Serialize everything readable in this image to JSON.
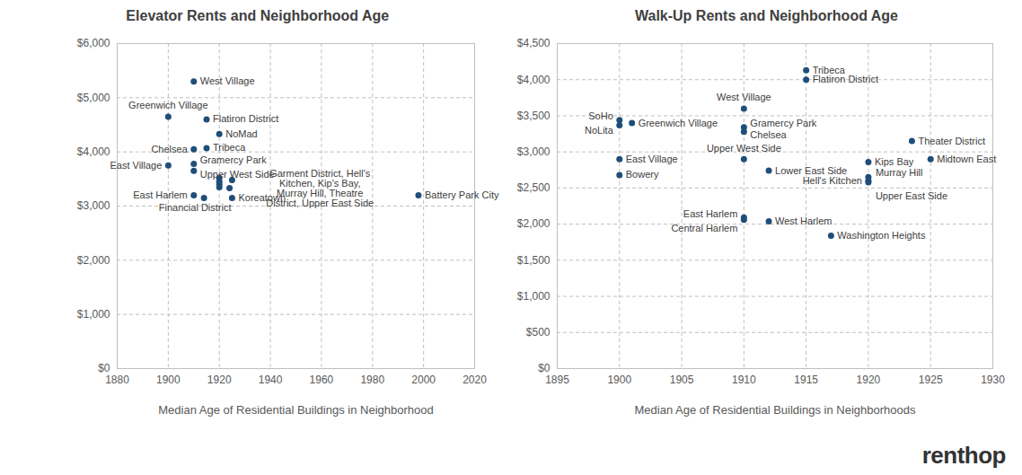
{
  "chart_data": [
    {
      "type": "scatter",
      "title": "Elevator Rents and Neighborhood Age",
      "x_label": "Median Age of Residential Buildings in Neighborhood",
      "xlim": [
        1880,
        2020
      ],
      "xticks": [
        1880,
        1900,
        1920,
        1940,
        1960,
        1980,
        2000,
        2020
      ],
      "ylim": [
        0,
        6000
      ],
      "yticks": [
        {
          "value": 0,
          "label": "$0"
        },
        {
          "value": 1000,
          "label": "$1,000"
        },
        {
          "value": 2000,
          "label": "$2,000"
        },
        {
          "value": 3000,
          "label": "$3,000"
        },
        {
          "value": 4000,
          "label": "$4,000"
        },
        {
          "value": 5000,
          "label": "$5,000"
        },
        {
          "value": 6000,
          "label": "$6,000"
        }
      ],
      "grid": true,
      "color": "#1f4e79",
      "marker": "circle",
      "labels": [
        "West Village",
        "Greenwich Village",
        "Flatiron District",
        "NoMad",
        "Chelsea",
        "Tribeca",
        "East Village",
        "Gramercy Park",
        "Upper West Side",
        null,
        null,
        null,
        null,
        null,
        null,
        "East Harlem",
        "Financial District",
        "Koreatown",
        "Battery Park City"
      ],
      "x": [
        1910,
        1900,
        1915,
        1920,
        1910,
        1915,
        1900,
        1910,
        1910,
        1920,
        1920,
        1920,
        1920,
        1925,
        1924,
        1910,
        1914,
        1925,
        1998
      ],
      "values": [
        5300,
        4650,
        4600,
        4330,
        4050,
        4070,
        3750,
        3780,
        3650,
        3520,
        3450,
        3400,
        3350,
        3480,
        3330,
        3200,
        3150,
        3150,
        3200
      ],
      "annotations": [
        {
          "text": "Garment District, Hell's Kitchen, Kip's Bay, Murray Hill, Theatre District, Upper East Side",
          "x": 1920,
          "y": 3450
        }
      ]
    },
    {
      "type": "scatter",
      "title": "Walk-Up Rents and Neighborhood Age",
      "x_label": "Median Age of Residential Buildings in Neighborhoods",
      "xlim": [
        1895,
        1930
      ],
      "xticks": [
        1895,
        1900,
        1905,
        1910,
        1915,
        1920,
        1925,
        1930
      ],
      "ylim": [
        0,
        4500
      ],
      "yticks": [
        {
          "value": 0,
          "label": "$0"
        },
        {
          "value": 500,
          "label": "$500"
        },
        {
          "value": 1000,
          "label": "$1,000"
        },
        {
          "value": 1500,
          "label": "$1,500"
        },
        {
          "value": 2000,
          "label": "$2,000"
        },
        {
          "value": 2500,
          "label": "$2,500"
        },
        {
          "value": 3000,
          "label": "$3,000"
        },
        {
          "value": 3500,
          "label": "$3,500"
        },
        {
          "value": 4000,
          "label": "$4,000"
        },
        {
          "value": 4500,
          "label": "$4,500"
        }
      ],
      "grid": true,
      "color": "#1f4e79",
      "marker": "circle",
      "labels": [
        "Tribeca",
        "Flatiron District",
        "West Village",
        "SoHo",
        "NoLita",
        "Greenwich Village",
        "Gramercy Park",
        "Chelsea",
        "Upper West Side",
        "East Village",
        "Theater District",
        "Midtown East",
        "Kips Bay",
        "Bowery",
        "Lower East Side",
        "Murray Hill",
        "Hell's Kitchen",
        "Upper East Side",
        "East Harlem",
        "Central Harlem",
        "West Harlem",
        "Washington Heights"
      ],
      "x": [
        1915,
        1915,
        1910,
        1900,
        1900,
        1901,
        1910,
        1910,
        1910,
        1900,
        1923.5,
        1925,
        1920,
        1900,
        1912,
        1920,
        1920,
        1920,
        1910,
        1910,
        1912,
        1917
      ],
      "values": [
        4130,
        4000,
        3600,
        3440,
        3370,
        3400,
        3340,
        3280,
        2900,
        2900,
        3150,
        2900,
        2860,
        2680,
        2740,
        2650,
        2600,
        2580,
        2090,
        2060,
        2040,
        1840
      ]
    }
  ],
  "logo": "renthop"
}
